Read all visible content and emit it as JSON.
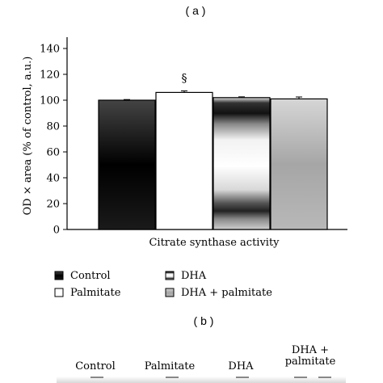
{
  "panel_a_label": "( a )",
  "panel_b_label": "( b )",
  "chart_data": {
    "type": "bar",
    "title": "",
    "xlabel": "Citrate synthase activity",
    "ylabel": "OD × area (% of control, a.u.)",
    "ylim": [
      0,
      140
    ],
    "yticks": [
      0,
      20,
      40,
      60,
      80,
      100,
      120,
      140
    ],
    "grid": false,
    "legend_placement": "bottom",
    "categories": [
      "Control",
      "Palmitate",
      "DHA",
      "DHA + palmitate"
    ],
    "values": [
      100,
      106,
      102,
      101
    ],
    "errors": [
      0.5,
      1.2,
      0.6,
      1.5
    ],
    "annotations": [
      {
        "category": "Palmitate",
        "text": "§"
      }
    ],
    "series_fill": [
      "solid-black",
      "white",
      "gradient-black-white",
      "gradient-gray"
    ],
    "colors": {
      "control": "#0a0a0a",
      "palmitate": "#ffffff",
      "dha": "#3a3a3a",
      "dha_palmitate": "#a8a8a8"
    }
  },
  "legend": [
    {
      "label": "Control",
      "style": "black"
    },
    {
      "label": "Palmitate",
      "style": "white"
    },
    {
      "label": "DHA",
      "style": "dark-gradient"
    },
    {
      "label": "DHA + palmitate",
      "style": "gray"
    }
  ],
  "blot_labels": [
    "Control",
    "Palmitate",
    "DHA",
    "DHA +\npalmitate"
  ]
}
